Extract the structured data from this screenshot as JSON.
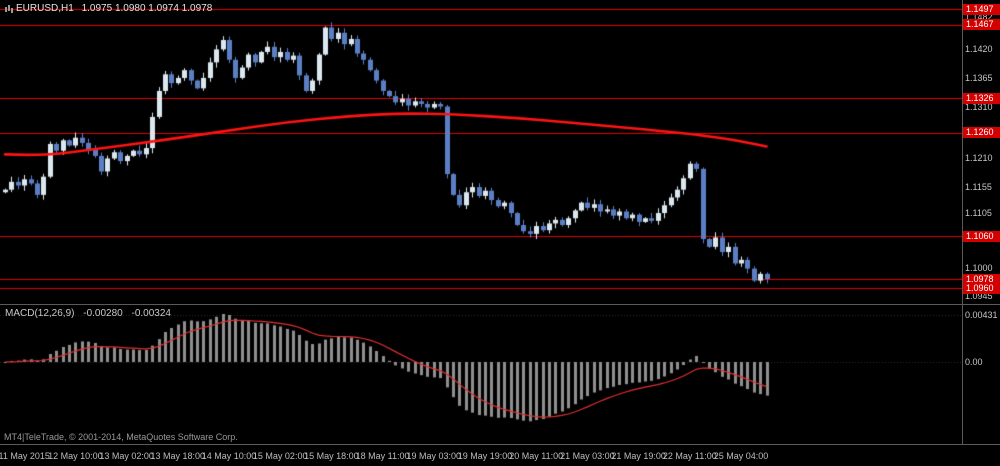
{
  "header": {
    "symbol_period": "EURUSD,H1",
    "ohlc_text": "1.0975 1.0980 1.0974 1.0978"
  },
  "macd_header": {
    "name": "MACD(12,26,9)",
    "main_value": "-0.00280",
    "signal_value": "-0.00324"
  },
  "footer": {
    "copyright": "MT4|TeleTrade, © 2001-2014, MetaQuotes Software Corp."
  },
  "colors": {
    "background": "#000000",
    "bull_candle": "#dce8f0",
    "bear_candle": "#5b7fc4",
    "ma_line": "#ff1414",
    "level_line": "#e00000",
    "badge_bg": "#d40000",
    "badge_text": "#ffffff",
    "macd_histogram": "#8f8f8f",
    "macd_signal": "#e03030",
    "axis_text": "#c6c6c6",
    "separator": "#5a5a5a"
  },
  "price_axis": {
    "labels": [
      {
        "t": "1.1482",
        "p": 1.1482
      },
      {
        "t": "1.1420",
        "p": 1.142
      },
      {
        "t": "1.1365",
        "p": 1.1365
      },
      {
        "t": "1.1310",
        "p": 1.131
      },
      {
        "t": "1.1210",
        "p": 1.121
      },
      {
        "t": "1.1155",
        "p": 1.1155
      },
      {
        "t": "1.1105",
        "p": 1.1105
      },
      {
        "t": "1.1000",
        "p": 1.1
      },
      {
        "t": "1.0945",
        "p": 1.0945
      }
    ],
    "badges": [
      {
        "t": "1.1497",
        "p": 1.1497
      },
      {
        "t": "1.1467",
        "p": 1.1467
      },
      {
        "t": "1.1326",
        "p": 1.1326
      },
      {
        "t": "1.1260",
        "p": 1.126
      },
      {
        "t": "1.1060",
        "p": 1.106
      },
      {
        "t": "1.0978",
        "p": 1.0978
      },
      {
        "t": "1.0960",
        "p": 1.096
      }
    ]
  },
  "macd_axis": {
    "labels": [
      {
        "t": "0.00431",
        "v": 0.00431
      },
      {
        "t": "0.00",
        "v": 0
      }
    ]
  },
  "time_axis": {
    "labels": [
      {
        "t": "11 May 2015",
        "bar": 3
      },
      {
        "t": "12 May 10:00",
        "bar": 11
      },
      {
        "t": "13 May 02:00",
        "bar": 19
      },
      {
        "t": "13 May 18:00",
        "bar": 27
      },
      {
        "t": "14 May 10:00",
        "bar": 35
      },
      {
        "t": "15 May 02:00",
        "bar": 43
      },
      {
        "t": "15 May 18:00",
        "bar": 51
      },
      {
        "t": "18 May 11:00",
        "bar": 59
      },
      {
        "t": "19 May 03:00",
        "bar": 67
      },
      {
        "t": "19 May 19:00",
        "bar": 75
      },
      {
        "t": "20 May 11:00",
        "bar": 83
      },
      {
        "t": "21 May 03:00",
        "bar": 91
      },
      {
        "t": "21 May 19:00",
        "bar": 99
      },
      {
        "t": "22 May 11:00",
        "bar": 107
      },
      {
        "t": "25 May 04:00",
        "bar": 115
      }
    ]
  },
  "chart_data": [
    {
      "type": "candlestick",
      "symbol": "EURUSD",
      "timeframe": "H1",
      "title": "EURUSD,H1",
      "current_ohlc": {
        "open": 1.0975,
        "high": 1.098,
        "low": 1.0974,
        "close": 1.0978
      },
      "y_axis": {
        "top": 1.1515,
        "bottom": 1.093
      },
      "bar_spacing": 6.4,
      "open_first": 1.1145,
      "closes": [
        1.115,
        1.1165,
        1.1158,
        1.117,
        1.1162,
        1.114,
        1.1175,
        1.1238,
        1.1225,
        1.1245,
        1.1235,
        1.125,
        1.124,
        1.1228,
        1.1215,
        1.1185,
        1.121,
        1.1222,
        1.1205,
        1.1215,
        1.1225,
        1.1218,
        1.123,
        1.129,
        1.134,
        1.1372,
        1.1355,
        1.1365,
        1.138,
        1.136,
        1.1345,
        1.1365,
        1.1395,
        1.142,
        1.1438,
        1.14,
        1.1365,
        1.1385,
        1.141,
        1.1395,
        1.1415,
        1.1425,
        1.1405,
        1.1415,
        1.14,
        1.1408,
        1.137,
        1.134,
        1.136,
        1.141,
        1.1462,
        1.144,
        1.1452,
        1.143,
        1.144,
        1.1412,
        1.14,
        1.138,
        1.136,
        1.134,
        1.133,
        1.1318,
        1.1325,
        1.1312,
        1.132,
        1.1315,
        1.1308,
        1.1315,
        1.131,
        1.118,
        1.114,
        1.112,
        1.1145,
        1.1155,
        1.1138,
        1.1148,
        1.113,
        1.1118,
        1.1125,
        1.1105,
        1.1082,
        1.107,
        1.1065,
        1.108,
        1.1072,
        1.1085,
        1.1092,
        1.1082,
        1.1095,
        1.111,
        1.1125,
        1.1115,
        1.1122,
        1.1108,
        1.1112,
        1.11,
        1.1108,
        1.1095,
        1.1102,
        1.1088,
        1.1095,
        1.109,
        1.1105,
        1.112,
        1.1135,
        1.115,
        1.1172,
        1.12,
        1.119,
        1.1055,
        1.104,
        1.1058,
        1.103,
        1.104,
        1.1008,
        1.1015,
        1.0998,
        1.0975,
        1.0988,
        1.0978
      ],
      "ma_line": [
        [
          0,
          1.1218
        ],
        [
          6,
          1.1215
        ],
        [
          14,
          1.1228
        ],
        [
          24,
          1.1244
        ],
        [
          34,
          1.1262
        ],
        [
          44,
          1.128
        ],
        [
          54,
          1.1292
        ],
        [
          62,
          1.1297
        ],
        [
          70,
          1.1295
        ],
        [
          80,
          1.1288
        ],
        [
          90,
          1.1277
        ],
        [
          100,
          1.1266
        ],
        [
          108,
          1.1256
        ],
        [
          114,
          1.1246
        ],
        [
          119,
          1.1233
        ]
      ],
      "ma_description": "thick red smoothed moving average",
      "levels": [
        1.1497,
        1.1467,
        1.1326,
        1.126,
        1.106,
        1.0978,
        1.096
      ]
    },
    {
      "type": "macd-histogram",
      "title": "MACD(12,26,9)",
      "settings": [
        12,
        26,
        9
      ],
      "current_main": -0.0028,
      "current_signal": -0.00324,
      "y_axis_labels": [
        0.00431,
        0
      ],
      "derived": "histogram = EMA12(close)-EMA26(close); signal = EMA9(histogram)"
    }
  ]
}
